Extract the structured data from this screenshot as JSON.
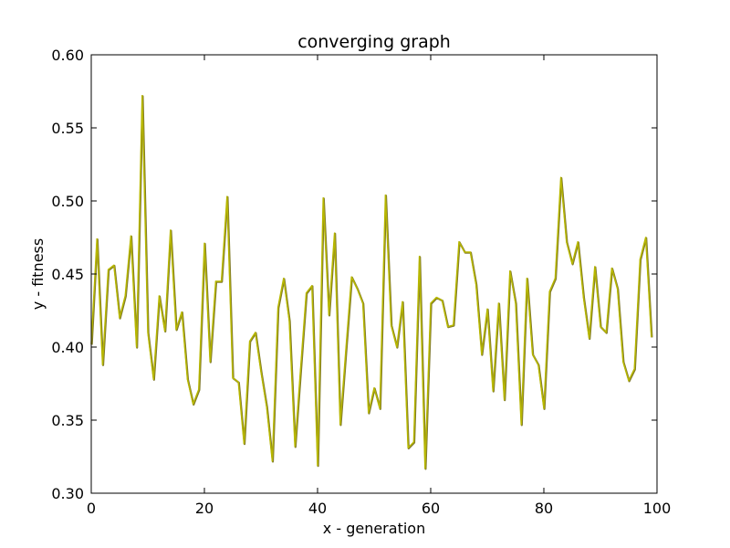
{
  "chart_data": {
    "type": "line",
    "title": "converging graph",
    "xlabel": "x - generation",
    "ylabel": "y - fitness",
    "xlim": [
      0,
      100
    ],
    "ylim": [
      0.3,
      0.6
    ],
    "xticks": [
      "0",
      "20",
      "40",
      "60",
      "80",
      "100"
    ],
    "yticks": [
      "0.30",
      "0.35",
      "0.40",
      "0.45",
      "0.50",
      "0.55",
      "0.60"
    ],
    "grid": false,
    "legend": "none",
    "series": [
      {
        "color": "#b8b800",
        "values": [
          0.402,
          0.474,
          0.388,
          0.453,
          0.456,
          0.42,
          0.435,
          0.476,
          0.4,
          0.572,
          0.41,
          0.378,
          0.435,
          0.411,
          0.48,
          0.412,
          0.424,
          0.378,
          0.361,
          0.371,
          0.471,
          0.39,
          0.445,
          0.445,
          0.503,
          0.379,
          0.376,
          0.334,
          0.404,
          0.41,
          0.383,
          0.359,
          0.322,
          0.427,
          0.447,
          0.418,
          0.332,
          0.385,
          0.437,
          0.442,
          0.319,
          0.502,
          0.422,
          0.478,
          0.347,
          0.398,
          0.448,
          0.44,
          0.43,
          0.355,
          0.372,
          0.358,
          0.504,
          0.415,
          0.4,
          0.431,
          0.331,
          0.335,
          0.462,
          0.317,
          0.43,
          0.434,
          0.432,
          0.414,
          0.415,
          0.472,
          0.465,
          0.465,
          0.443,
          0.395,
          0.426,
          0.37,
          0.43,
          0.364,
          0.452,
          0.43,
          0.347,
          0.447,
          0.395,
          0.388,
          0.358,
          0.438,
          0.447,
          0.516,
          0.472,
          0.457,
          0.472,
          0.434,
          0.406,
          0.455,
          0.414,
          0.41,
          0.454,
          0.44,
          0.39,
          0.377,
          0.385,
          0.46,
          0.475,
          0.407
        ]
      }
    ]
  }
}
